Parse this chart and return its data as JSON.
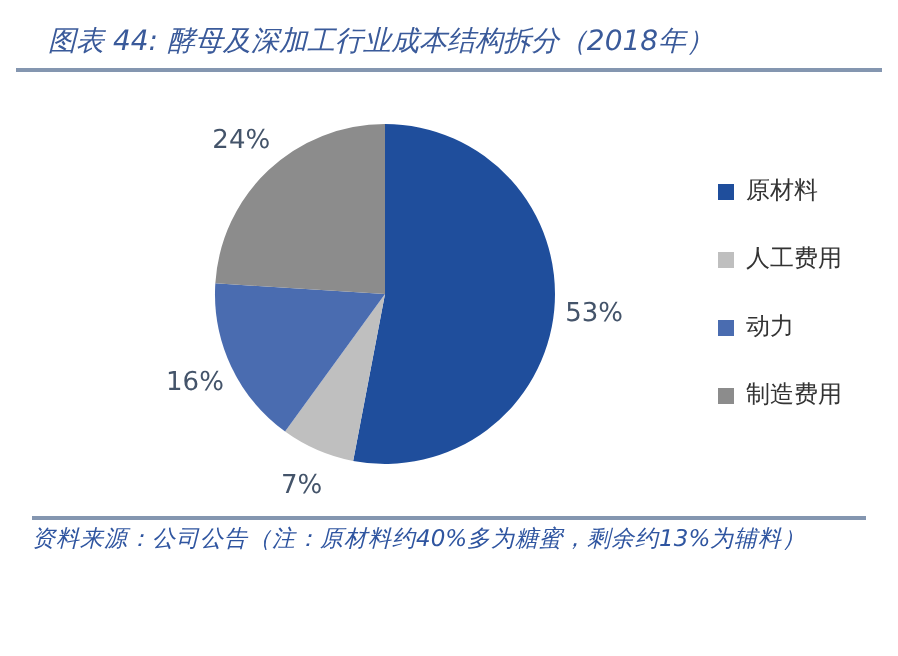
{
  "chart_data": {
    "type": "pie",
    "title": "图表 44: 酵母及深加工行业成本结构拆分（2018年）",
    "categories": [
      "原材料",
      "人工费用",
      "动力",
      "制造费用"
    ],
    "values": [
      53,
      7,
      16,
      24
    ],
    "colors": [
      "#1f4e9c",
      "#bfbfbf",
      "#4a6cb0",
      "#8c8c8c"
    ],
    "value_labels": [
      "53%",
      "7%",
      "16%",
      "24%"
    ],
    "legend": "right",
    "annotations": [
      "资料来源：公司公告（注：原材料约40%多为糖蜜，剩余约13%为辅料）"
    ]
  }
}
